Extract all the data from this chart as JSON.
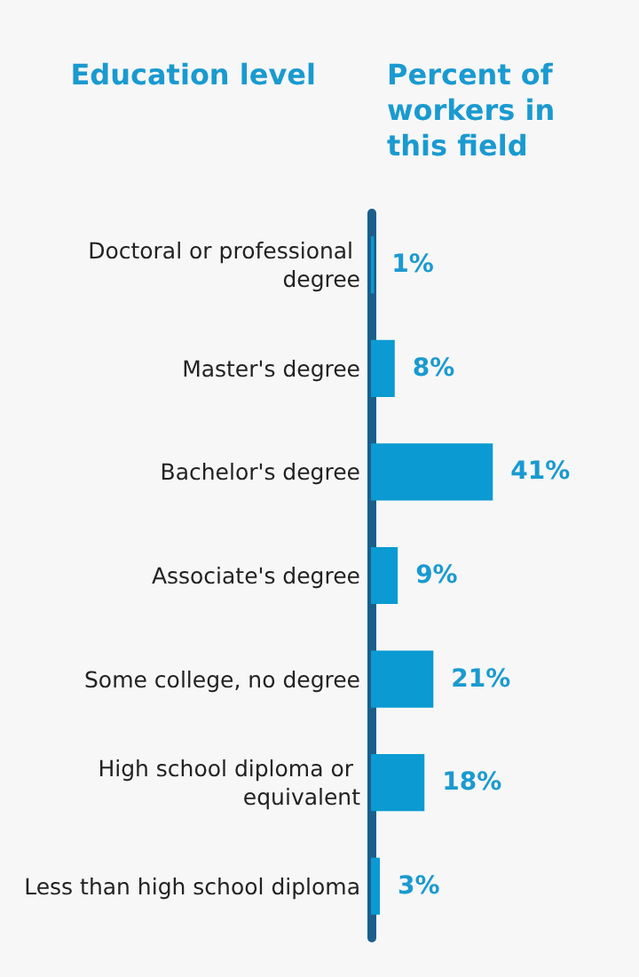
{
  "chart_data": {
    "type": "bar",
    "orientation": "horizontal",
    "ylabel": "Education level",
    "xlabel": "Percent of workers in this field",
    "categories": [
      "Doctoral or professional degree",
      "Master's degree",
      "Bachelor's degree",
      "Associate's degree",
      "Some college, no degree",
      "High school diploma or equivalent",
      "Less than high school diploma"
    ],
    "values": [
      1,
      8,
      41,
      9,
      21,
      18,
      3
    ],
    "value_labels": [
      "1%",
      "8%",
      "41%",
      "9%",
      "21%",
      "18%",
      "3%"
    ],
    "color": "#0b9ad2"
  }
}
